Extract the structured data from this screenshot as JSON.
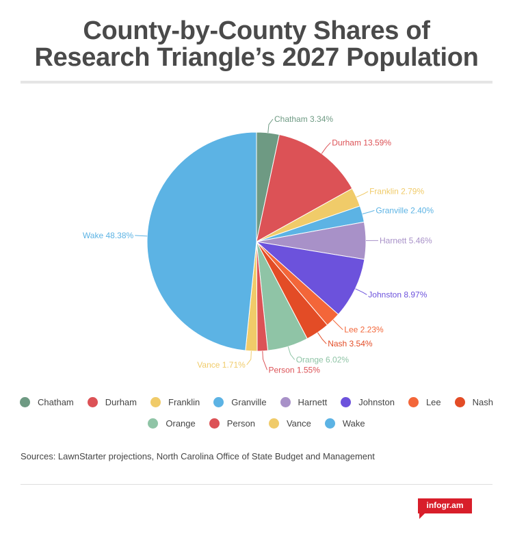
{
  "title_lines": [
    "County-by-County Shares of",
    "Research Triangle’s 2027 Population"
  ],
  "sources": "Sources: LawnStarter projections, North Carolina Office of State Budget and Management",
  "brand": "infogr.am",
  "chart_data": {
    "type": "pie",
    "title": "County-by-County Shares of Research Triangle’s 2027 Population",
    "unit": "%",
    "legend_position": "bottom",
    "slices": [
      {
        "name": "Chatham",
        "value": 3.34,
        "label": "Chatham 3.34%",
        "color": "#6e9a83"
      },
      {
        "name": "Durham",
        "value": 13.59,
        "label": "Durham 13.59%",
        "color": "#dc5256"
      },
      {
        "name": "Franklin",
        "value": 2.79,
        "label": "Franklin 2.79%",
        "color": "#f0cb69"
      },
      {
        "name": "Granville",
        "value": 2.4,
        "label": "Granville 2.40%",
        "color": "#5cb3e4"
      },
      {
        "name": "Harnett",
        "value": 5.46,
        "label": "Harnett 5.46%",
        "color": "#a891c8"
      },
      {
        "name": "Johnston",
        "value": 8.97,
        "label": "Johnston 8.97%",
        "color": "#6c52dc"
      },
      {
        "name": "Lee",
        "value": 2.23,
        "label": "Lee 2.23%",
        "color": "#f36639"
      },
      {
        "name": "Nash",
        "value": 3.54,
        "label": "Nash 3.54%",
        "color": "#e34c26"
      },
      {
        "name": "Orange",
        "value": 6.02,
        "label": "Orange 6.02%",
        "color": "#8fc4a6"
      },
      {
        "name": "Person",
        "value": 1.55,
        "label": "Person 1.55%",
        "color": "#dc5256"
      },
      {
        "name": "Vance",
        "value": 1.71,
        "label": "Vance 1.71%",
        "color": "#f0cb69"
      },
      {
        "name": "Wake",
        "value": 48.38,
        "label": "Wake 48.38%",
        "color": "#5cb3e4"
      }
    ],
    "legend_rows": [
      [
        "Chatham",
        "Durham",
        "Franklin",
        "Granville",
        "Harnett",
        "Johnston",
        "Lee",
        "Nash"
      ],
      [
        "Orange",
        "Person",
        "Vance",
        "Wake"
      ]
    ]
  }
}
